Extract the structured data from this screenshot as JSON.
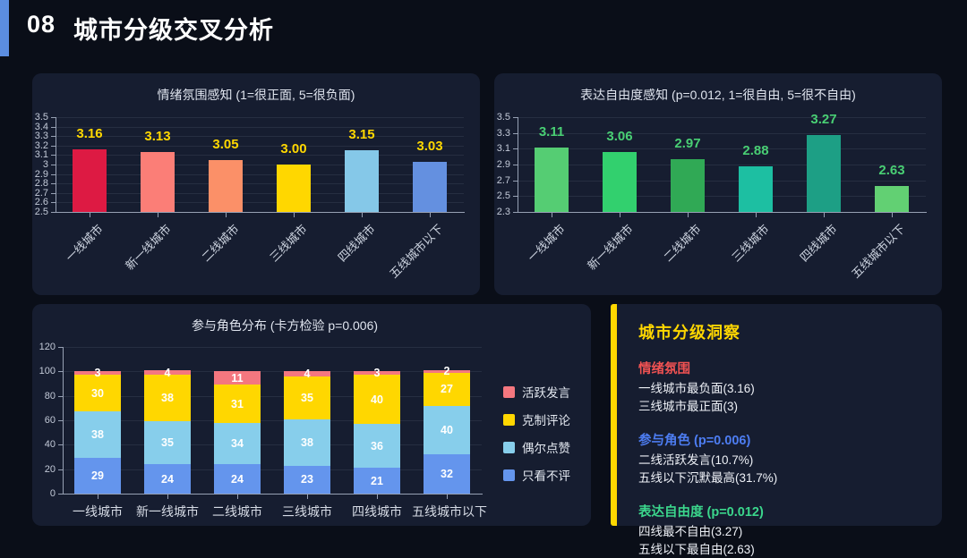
{
  "page": {
    "slide_number": "08",
    "title": "城市分级交叉分析",
    "header_accent_color": "#5b8de0",
    "background_color": "#0a0e18",
    "panel_color": "#161d30"
  },
  "chart_data": [
    {
      "type": "bar",
      "title": "情绪氛围感知 (1=很正面, 5=很负面)",
      "categories": [
        "一线城市",
        "新一线城市",
        "二线城市",
        "三线城市",
        "四线城市",
        "五线城市以下"
      ],
      "values": [
        3.16,
        3.13,
        3.05,
        3.0,
        3.15,
        3.03
      ],
      "value_labels": [
        "3.16",
        "3.13",
        "3.05",
        "3.00",
        "3.15",
        "3.03"
      ],
      "bar_colors": [
        "#dd1a43",
        "#fb7e77",
        "#fb9068",
        "#ffd700",
        "#85c8e8",
        "#6490e0"
      ],
      "label_color": "#ffd700",
      "ylim": [
        2.5,
        3.5
      ],
      "yticks": [
        "2.5",
        "2.6",
        "2.7",
        "2.8",
        "2.9",
        "3",
        "3.1",
        "3.2",
        "3.3",
        "3.4",
        "3.5"
      ],
      "grid": true,
      "xlabel_rotation": -45,
      "legend_position": "none"
    },
    {
      "type": "bar",
      "title": "表达自由度感知 (p=0.012, 1=很自由, 5=很不自由)",
      "categories": [
        "一线城市",
        "新一线城市",
        "二线城市",
        "三线城市",
        "四线城市",
        "五线城市以下"
      ],
      "values": [
        3.11,
        3.06,
        2.97,
        2.88,
        3.27,
        2.63
      ],
      "value_labels": [
        "3.11",
        "3.06",
        "2.97",
        "2.88",
        "3.27",
        "2.63"
      ],
      "bar_colors": [
        "#55cd73",
        "#32d06e",
        "#30a955",
        "#1dbfa2",
        "#1d9f85",
        "#62d073"
      ],
      "label_color": "#49cf74",
      "ylim": [
        2.3,
        3.5
      ],
      "yticks": [
        "2.3",
        "2.5",
        "2.7",
        "2.9",
        "3.1",
        "3.3",
        "3.5"
      ],
      "grid": true,
      "xlabel_rotation": -45,
      "legend_position": "none"
    },
    {
      "type": "stacked-bar",
      "title": "参与角色分布 (卡方检验 p=0.006)",
      "categories": [
        "一线城市",
        "新一线城市",
        "二线城市",
        "三线城市",
        "四线城市",
        "五线城市以下"
      ],
      "series": [
        {
          "name": "只看不评",
          "color": "#6495ed",
          "values": [
            29,
            24,
            24,
            23,
            21,
            32
          ]
        },
        {
          "name": "偶尔点赞",
          "color": "#87ceeb",
          "values": [
            38,
            35,
            34,
            38,
            36,
            40
          ]
        },
        {
          "name": "克制评论",
          "color": "#ffd700",
          "values": [
            30,
            38,
            31,
            35,
            40,
            27
          ]
        },
        {
          "name": "活跃发言",
          "color": "#f4777f",
          "values": [
            3,
            4,
            11,
            4,
            3,
            2
          ]
        }
      ],
      "segment_label_color": "#ffffff",
      "ylim": [
        0,
        120
      ],
      "yticks": [
        "0",
        "20",
        "40",
        "60",
        "80",
        "100",
        "120"
      ],
      "grid": true,
      "xlabel_rotation": 0,
      "legend_position": "right",
      "legend_order_top_to_bottom": [
        "活跃发言",
        "克制评论",
        "偶尔点赞",
        "只看不评"
      ]
    }
  ],
  "insight_panel": {
    "title": "城市分级洞察",
    "accent_color": "#ffd700",
    "sections": [
      {
        "heading": "情绪氛围",
        "color": "#f05252",
        "lines": [
          "一线城市最负面(3.16)",
          "三线城市最正面(3)"
        ]
      },
      {
        "heading": "参与角色 (p=0.006)",
        "color": "#4d7df2",
        "lines": [
          "二线活跃发言(10.7%)",
          "五线以下沉默最高(31.7%)"
        ]
      },
      {
        "heading": "表达自由度 (p=0.012)",
        "color": "#3bd68c",
        "lines": [
          "四线最不自由(3.27)",
          "五线以下最自由(2.63)"
        ]
      }
    ]
  }
}
